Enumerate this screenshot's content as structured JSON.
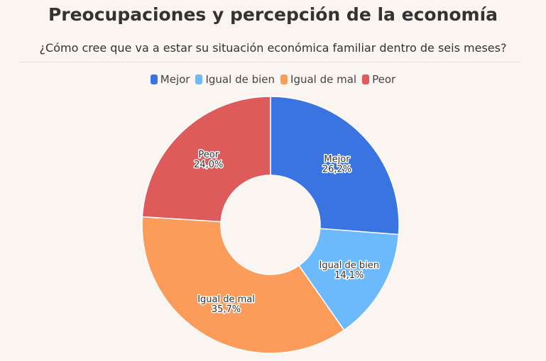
{
  "chart_data": {
    "type": "pie",
    "title": "Preocupaciones y percepción de la economía",
    "subtitle": "¿Cómo cree que va a estar su situación económica familiar dentro de seis meses?",
    "legend_position": "top",
    "donut": true,
    "slices": [
      {
        "name": "Mejor",
        "value": 26.2,
        "label": "26,2%",
        "color": "#3a74e0"
      },
      {
        "name": "Igual de bien",
        "value": 14.1,
        "label": "14,1%",
        "color": "#6cb9fb"
      },
      {
        "name": "Igual de mal",
        "value": 35.7,
        "label": "35,7%",
        "color": "#fb9c5a"
      },
      {
        "name": "Peor",
        "value": 24.0,
        "label": "24,0%",
        "color": "#de5b5b"
      }
    ]
  }
}
